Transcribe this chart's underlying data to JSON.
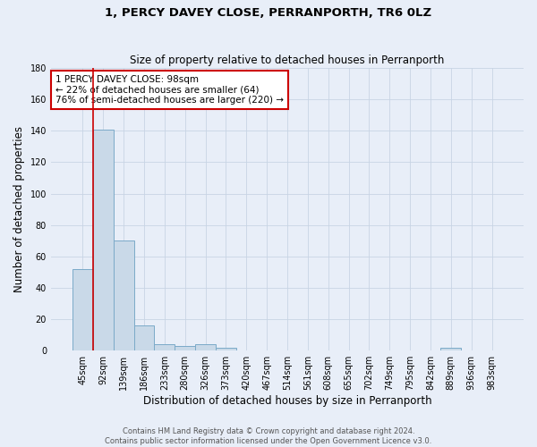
{
  "title": "1, PERCY DAVEY CLOSE, PERRANPORTH, TR6 0LZ",
  "subtitle": "Size of property relative to detached houses in Perranporth",
  "xlabel": "Distribution of detached houses by size in Perranporth",
  "ylabel": "Number of detached properties",
  "bar_labels": [
    "45sqm",
    "92sqm",
    "139sqm",
    "186sqm",
    "233sqm",
    "280sqm",
    "326sqm",
    "373sqm",
    "420sqm",
    "467sqm",
    "514sqm",
    "561sqm",
    "608sqm",
    "655sqm",
    "702sqm",
    "749sqm",
    "795sqm",
    "842sqm",
    "889sqm",
    "936sqm",
    "983sqm"
  ],
  "bar_values": [
    52,
    141,
    70,
    16,
    4,
    3,
    4,
    2,
    0,
    0,
    0,
    0,
    0,
    0,
    0,
    0,
    0,
    0,
    2,
    0,
    0
  ],
  "bar_color": "#c9d9e8",
  "bar_edge_color": "#7baac8",
  "grid_color": "#c8d4e4",
  "background_color": "#e8eef8",
  "vline_color": "#cc0000",
  "vline_x_index": 1,
  "annotation_text": "1 PERCY DAVEY CLOSE: 98sqm\n← 22% of detached houses are smaller (64)\n76% of semi-detached houses are larger (220) →",
  "annotation_box_color": "white",
  "annotation_box_edge_color": "#cc0000",
  "ylim": [
    0,
    180
  ],
  "yticks": [
    0,
    20,
    40,
    60,
    80,
    100,
    120,
    140,
    160,
    180
  ],
  "footer": "Contains HM Land Registry data © Crown copyright and database right 2024.\nContains public sector information licensed under the Open Government Licence v3.0.",
  "title_fontsize": 9.5,
  "subtitle_fontsize": 8.5,
  "xlabel_fontsize": 8.5,
  "ylabel_fontsize": 8.5,
  "tick_fontsize": 7,
  "annotation_fontsize": 7.5,
  "footer_fontsize": 6
}
